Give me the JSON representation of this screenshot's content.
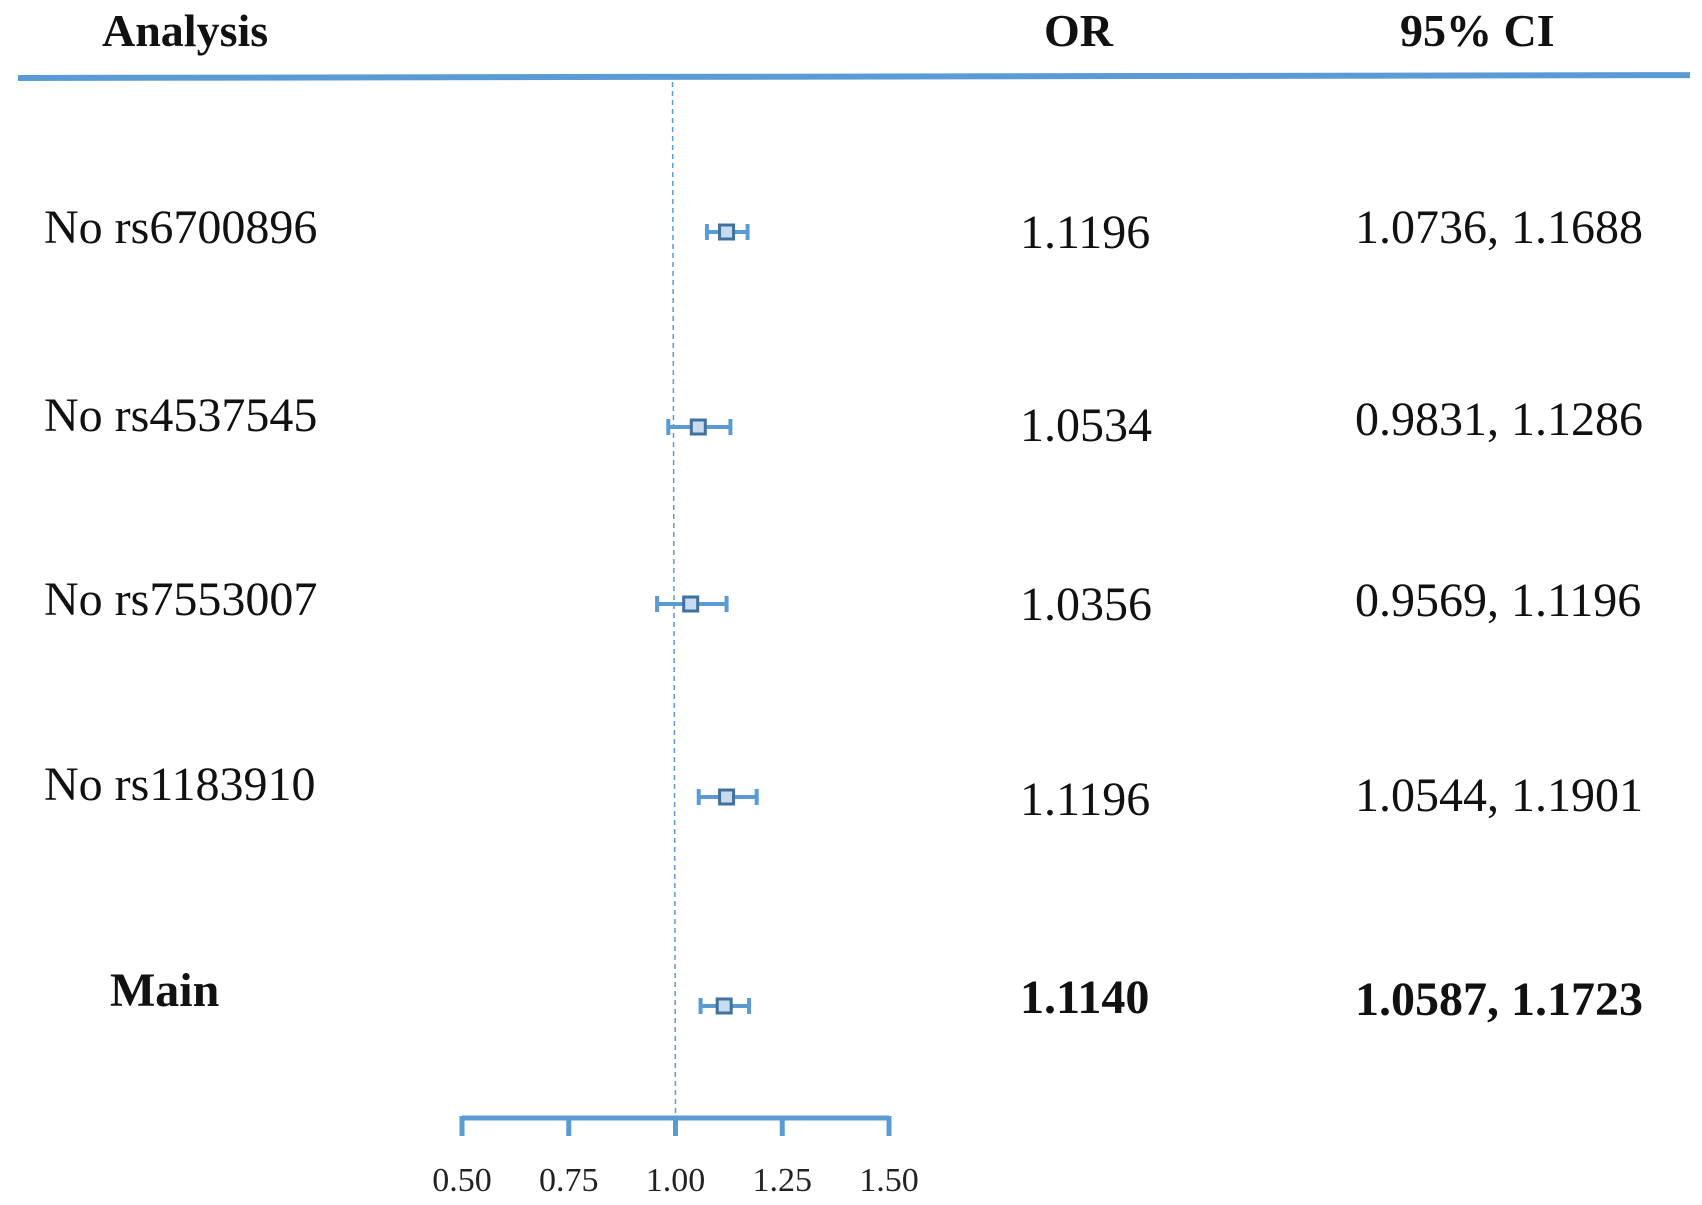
{
  "headers": {
    "analysis": "Analysis",
    "or": "OR",
    "ci": "95% CI"
  },
  "rows": [
    {
      "label": "No rs6700896",
      "or": "1.1196",
      "ci": "1.0736, 1.1688"
    },
    {
      "label": "No rs4537545",
      "or": "1.0534",
      "ci": "0.9831, 1.1286"
    },
    {
      "label": "No rs7553007",
      "or": "1.0356",
      "ci": "0.9569, 1.1196"
    },
    {
      "label": "No rs1183910",
      "or": "1.1196",
      "ci": "1.0544, 1.1901"
    },
    {
      "label": "Main",
      "or": "1.1140",
      "ci": "1.0587, 1.1723",
      "bold": true
    }
  ],
  "chart_data": {
    "type": "forest",
    "categories": [
      "No rs6700896",
      "No rs4537545",
      "No rs7553007",
      "No rs1183910",
      "Main"
    ],
    "estimates": [
      1.1196,
      1.0534,
      1.0356,
      1.1196,
      1.114
    ],
    "lower": [
      1.0736,
      0.9831,
      0.9569,
      1.0544,
      1.0587
    ],
    "upper": [
      1.1688,
      1.1286,
      1.1196,
      1.1901,
      1.1723
    ],
    "xlim": [
      0.5,
      1.5
    ],
    "xticks": [
      "0.50",
      "0.75",
      "1.00",
      "1.25",
      "1.50"
    ],
    "reference_line": 1.0,
    "colors": {
      "accent": "#5b9bd5",
      "marker_border": "#41719c"
    }
  }
}
